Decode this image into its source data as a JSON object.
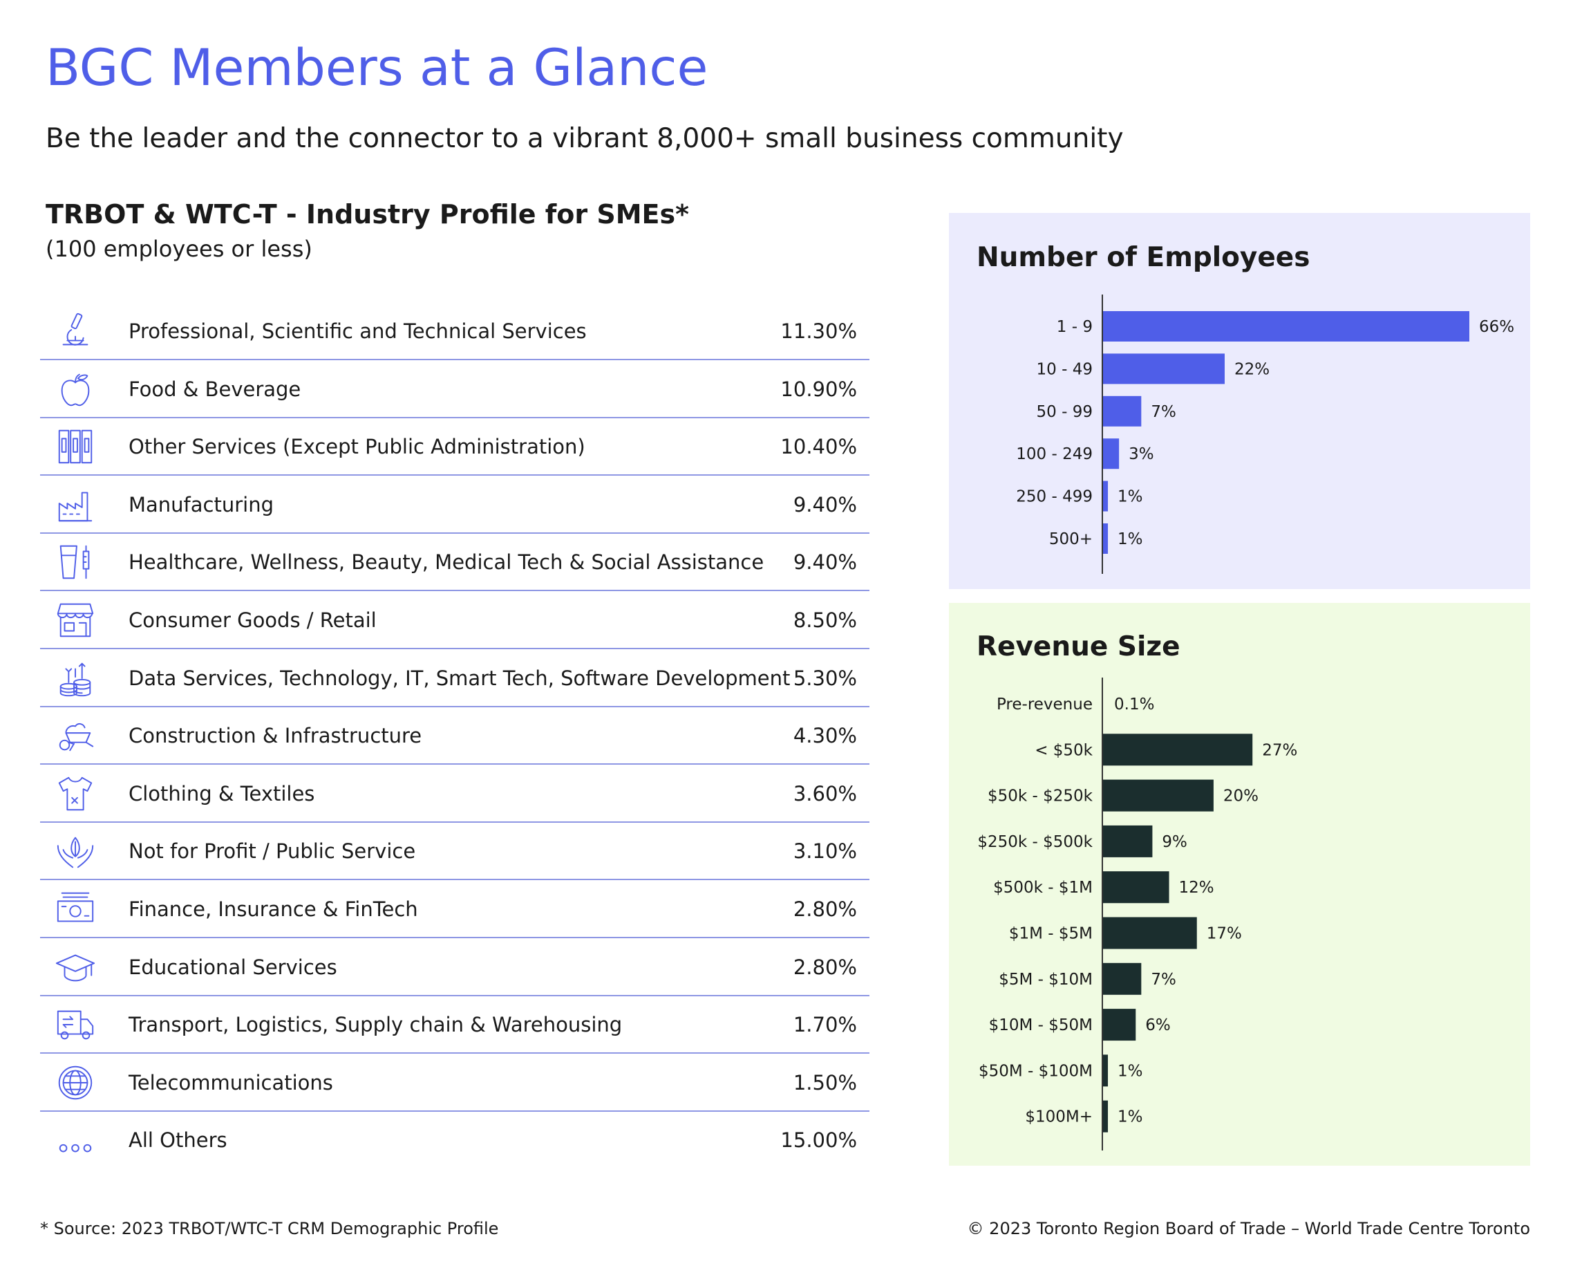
{
  "header": {
    "title": "BGC Members at a Glance",
    "subtitle": "Be the leader and the connector to a vibrant 8,000+ small business community"
  },
  "industry": {
    "title": "TRBOT & WTC-T -  Industry Profile for SMEs*",
    "note": "(100 employees or less)",
    "accent_color": "#4f5ee8",
    "rows": [
      {
        "icon": "microscope-icon",
        "label": "Professional, Scientific and Technical Services",
        "value": "11.30%"
      },
      {
        "icon": "apple-icon",
        "label": "Food & Beverage",
        "value": "10.90%"
      },
      {
        "icon": "binders-icon",
        "label": "Other Services (Except Public Administration)",
        "value": "10.40%"
      },
      {
        "icon": "factory-icon",
        "label": "Manufacturing",
        "value": "9.40%"
      },
      {
        "icon": "cup-syringe-icon",
        "label": "Healthcare, Wellness, Beauty, Medical Tech & Social Assistance",
        "value": "9.40%"
      },
      {
        "icon": "storefront-icon",
        "label": "Consumer Goods / Retail",
        "value": "8.50%"
      },
      {
        "icon": "data-stack-icon",
        "label": "Data Services, Technology, IT, Smart Tech, Software Development",
        "value": "5.30%"
      },
      {
        "icon": "wheelbarrow-icon",
        "label": "Construction & Infrastructure",
        "value": "4.30%"
      },
      {
        "icon": "tshirt-icon",
        "label": "Clothing & Textiles",
        "value": "3.60%"
      },
      {
        "icon": "hands-leaf-icon",
        "label": "Not for Profit / Public Service",
        "value": "3.10%"
      },
      {
        "icon": "banknote-icon",
        "label": "Finance, Insurance & FinTech",
        "value": "2.80%"
      },
      {
        "icon": "graduation-cap-icon",
        "label": "Educational Services",
        "value": "2.80%"
      },
      {
        "icon": "delivery-truck-icon",
        "label": "Transport, Logistics, Supply chain & Warehousing",
        "value": "1.70%"
      },
      {
        "icon": "globe-icon",
        "label": "Telecommunications",
        "value": "1.50%"
      },
      {
        "icon": "ellipsis-icon",
        "label": "All Others",
        "value": "15.00%"
      }
    ]
  },
  "chart_data": [
    {
      "type": "bar",
      "orientation": "horizontal",
      "title": "Number of Employees",
      "categories": [
        "1 - 9",
        "10 - 49",
        "50 - 99",
        "100 - 249",
        "250 - 499",
        "500+"
      ],
      "values": [
        66,
        22,
        7,
        3,
        1,
        1
      ],
      "value_labels": [
        "66%",
        "22%",
        "7%",
        "3%",
        "1%",
        "1%"
      ],
      "xlim": [
        0,
        66
      ],
      "bar_color": "#4f5ee8",
      "background": "#ebebfd",
      "grid": false,
      "legend": "none"
    },
    {
      "type": "bar",
      "orientation": "horizontal",
      "title": "Revenue Size",
      "categories": [
        "Pre-revenue",
        "< $50k",
        "$50k - $250k",
        "$250k - $500k",
        "$500k - $1M",
        "$1M - $5M",
        "$5M - $10M",
        "$10M - $50M",
        "$50M - $100M",
        "$100M+"
      ],
      "values": [
        0.1,
        27,
        20,
        9,
        12,
        17,
        7,
        6,
        1,
        1
      ],
      "value_labels": [
        "0.1%",
        "27%",
        "20%",
        "9%",
        "12%",
        "17%",
        "7%",
        "6%",
        "1%",
        "1%"
      ],
      "xlim": [
        0,
        66
      ],
      "bar_color": "#1b2e2e",
      "background": "#f0fbe2",
      "grid": false,
      "legend": "none"
    }
  ],
  "footer": {
    "footnote": "* Source: 2023 TRBOT/WTC-T CRM Demographic Profile",
    "copyright": "© 2023 Toronto Region Board of Trade – World Trade Centre Toronto"
  }
}
